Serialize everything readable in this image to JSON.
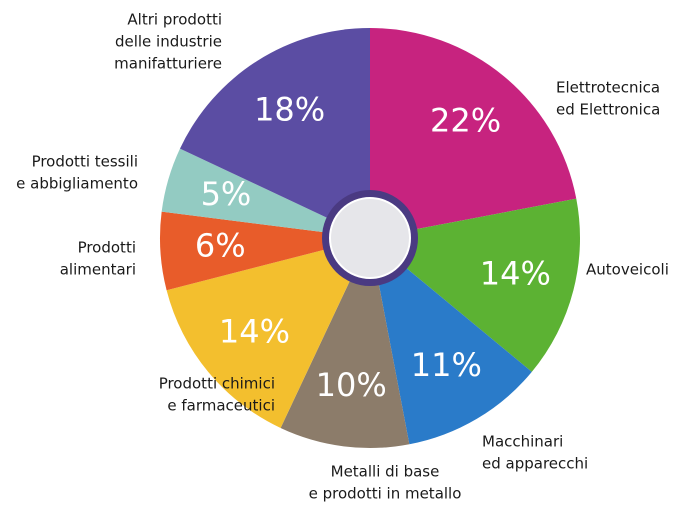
{
  "chart_data": {
    "type": "pie",
    "categories": [
      [
        "Elettrotecnica",
        "ed Elettronica"
      ],
      [
        "Autoveicoli"
      ],
      [
        "Macchinari",
        "ed apparecchi"
      ],
      [
        "Metalli di base",
        "e prodotti in metallo"
      ],
      [
        "Prodotti chimici",
        "e farmaceutici"
      ],
      [
        "Prodotti",
        "alimentari"
      ],
      [
        "Prodotti tessili",
        "e abbigliamento"
      ],
      [
        "Altri prodotti",
        "delle industrie",
        "manifatturiere"
      ]
    ],
    "values": [
      22,
      14,
      11,
      10,
      14,
      6,
      5,
      18
    ],
    "value_labels": [
      "22%",
      "14%",
      "11%",
      "10%",
      "14%",
      "6%",
      "5%",
      "18%"
    ],
    "colors": [
      "#c7237f",
      "#5cb233",
      "#2a7bc9",
      "#8c7c6a",
      "#f3bf2e",
      "#e85c2a",
      "#93cbc2",
      "#5b4da3"
    ]
  }
}
